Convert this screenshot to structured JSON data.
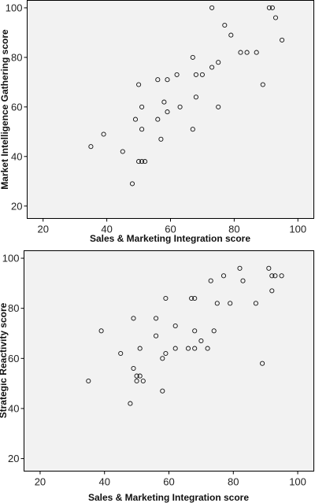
{
  "chart_data": [
    {
      "type": "scatter",
      "xlabel": "Sales & Marketing Integration score",
      "ylabel": "Market Intelligence Gathering score",
      "xlim": [
        15,
        105
      ],
      "ylim": [
        15,
        103
      ],
      "xticks": [
        20,
        40,
        60,
        80,
        100
      ],
      "yticks": [
        20,
        40,
        60,
        80,
        100
      ],
      "grid": false,
      "series": [
        {
          "x": [
            73,
            91,
            92,
            93,
            95,
            77,
            79,
            67,
            82,
            84,
            87,
            68,
            70,
            75,
            62,
            73,
            50,
            56,
            59,
            58,
            51,
            63,
            68,
            75,
            89,
            49,
            56,
            59,
            51,
            67,
            39,
            35,
            45,
            57,
            50,
            51,
            52,
            48
          ],
          "y": [
            100,
            100,
            100,
            96,
            87,
            93,
            89,
            80,
            82,
            82,
            82,
            73,
            73,
            78,
            73,
            76,
            69,
            71,
            71,
            62,
            60,
            60,
            64,
            60,
            69,
            55,
            55,
            58,
            51,
            51,
            49,
            44,
            42,
            47,
            38,
            38,
            38,
            29
          ]
        }
      ]
    },
    {
      "type": "scatter",
      "xlabel": "Sales & Marketing Integration score",
      "ylabel": "Strategic Reactivity score",
      "xlim": [
        15,
        105
      ],
      "ylim": [
        15,
        103
      ],
      "xticks": [
        20,
        40,
        60,
        80,
        100
      ],
      "yticks": [
        20,
        40,
        60,
        80,
        100
      ],
      "grid": false,
      "series": [
        {
          "x": [
            82,
            91,
            92,
            93,
            95,
            77,
            73,
            83,
            92,
            79,
            75,
            87,
            59,
            67,
            68,
            49,
            56,
            39,
            62,
            68,
            70,
            74,
            56,
            66,
            62,
            68,
            51,
            72,
            45,
            58,
            59,
            49,
            50,
            51,
            50,
            52,
            89,
            58,
            35,
            48
          ],
          "y": [
            96,
            96,
            93,
            93,
            93,
            93,
            91,
            91,
            87,
            82,
            82,
            82,
            84,
            84,
            84,
            76,
            76,
            71,
            73,
            71,
            67,
            71,
            69,
            64,
            64,
            64,
            64,
            64,
            62,
            60,
            62,
            56,
            53,
            53,
            51,
            51,
            58,
            47,
            51,
            42
          ]
        }
      ]
    }
  ]
}
